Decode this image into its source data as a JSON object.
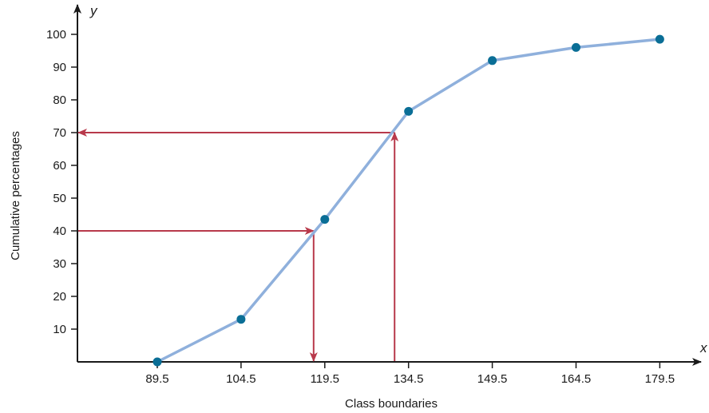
{
  "chart_data": {
    "type": "line",
    "xlabel": "Class boundaries",
    "ylabel": "Cumulative percentages",
    "x_axis_letter": "x",
    "y_axis_letter": "y",
    "x_ticks": [
      "89.5",
      "104.5",
      "119.5",
      "134.5",
      "149.5",
      "164.5",
      "179.5"
    ],
    "y_ticks": [
      "10",
      "20",
      "30",
      "40",
      "50",
      "60",
      "70",
      "80",
      "90",
      "100"
    ],
    "xlim": [
      75.2,
      190
    ],
    "ylim": [
      0,
      105
    ],
    "grid": false,
    "series": [
      {
        "x": [
          89.5,
          104.5,
          119.5,
          134.5,
          149.5,
          164.5,
          179.5
        ],
        "y": [
          0,
          13,
          43.5,
          76.5,
          92,
          96,
          98.5
        ]
      }
    ],
    "annotations": [
      {
        "type": "horizontal-arrow",
        "y": 70,
        "from_x": 132.0,
        "to_x": 75.2,
        "direction": "to-y-axis"
      },
      {
        "type": "vertical-arrow",
        "x": 132.0,
        "from_y": 0,
        "to_y": 70,
        "direction": "up"
      },
      {
        "type": "horizontal-arrow",
        "y": 40,
        "from_x": 75.2,
        "to_x": 117.5,
        "direction": "to-curve"
      },
      {
        "type": "vertical-arrow",
        "x": 117.5,
        "from_y": 40,
        "to_y": 0,
        "direction": "down"
      }
    ],
    "colors": {
      "line": "#8fb0dc",
      "points": "#0a6e96",
      "arrows": "#b8394b",
      "axes": "#1a1a1a"
    }
  }
}
